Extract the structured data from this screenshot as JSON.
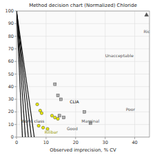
{
  "chart_data": {
    "type": "scatter",
    "title": "Method decision chart (Normalized) Chloride",
    "x_label": "Observed imprecision, % CV",
    "xlim": [
      0,
      45
    ],
    "ylim": [
      0,
      100
    ],
    "xticks": [
      0,
      10,
      20,
      30,
      40
    ],
    "yticks": [
      0,
      10,
      20,
      30,
      40,
      50,
      60,
      70,
      80,
      90,
      100
    ],
    "grid": true,
    "series": [
      {
        "type": "line",
        "color": "#111111",
        "x": [
          0,
          6
        ],
        "values": [
          100,
          0
        ]
      },
      {
        "type": "line",
        "color": "#111111",
        "x": [
          0,
          5
        ],
        "values": [
          100,
          0
        ]
      },
      {
        "type": "line",
        "color": "#111111",
        "x": [
          0,
          4
        ],
        "values": [
          100,
          0
        ]
      },
      {
        "type": "line",
        "color": "#111111",
        "x": [
          0,
          3
        ],
        "values": [
          100,
          0
        ]
      },
      {
        "type": "line",
        "color": "#111111",
        "x": [
          0,
          2
        ],
        "values": [
          100,
          0
        ]
      },
      {
        "type": "scatter",
        "color": "#e8e800",
        "marker": "circle",
        "x": [
          7,
          8,
          8.5,
          7.5,
          9,
          10.5,
          12,
          13,
          14
        ],
        "values": [
          26,
          21,
          19,
          9,
          7.5,
          6.5,
          17,
          15.5,
          14.5
        ]
      },
      {
        "type": "scatter",
        "color": "#b0b0b0",
        "marker": "square",
        "x": [
          13,
          14,
          15,
          14.5,
          16,
          23,
          25
        ],
        "values": [
          42,
          33,
          30,
          17,
          15.5,
          20,
          11
        ]
      },
      {
        "type": "scatter",
        "color": "#555555",
        "marker": "triangle",
        "x": [
          44
        ],
        "values": [
          97
        ]
      }
    ],
    "annotations": [
      {
        "text": "Unacceptable",
        "x": 30,
        "y": 65,
        "color": "#555555"
      },
      {
        "text": "Poor",
        "x": 37,
        "y": 22,
        "color": "#555555"
      },
      {
        "text": "Marginal",
        "x": 22,
        "y": 13,
        "color": "#555555"
      },
      {
        "text": "Good",
        "x": 17,
        "y": 7,
        "color": "#555555"
      },
      {
        "text": "World class",
        "x": 1.5,
        "y": 13,
        "color": "#333333"
      },
      {
        "text": "CLIA",
        "x": 18,
        "y": 28,
        "color": "#000000"
      },
      {
        "text": "Ric",
        "x": 43,
        "y": 84,
        "color": "#555555"
      },
      {
        "text": "Rilibar",
        "x": 9.5,
        "y": 4,
        "color": "#999900"
      }
    ]
  }
}
